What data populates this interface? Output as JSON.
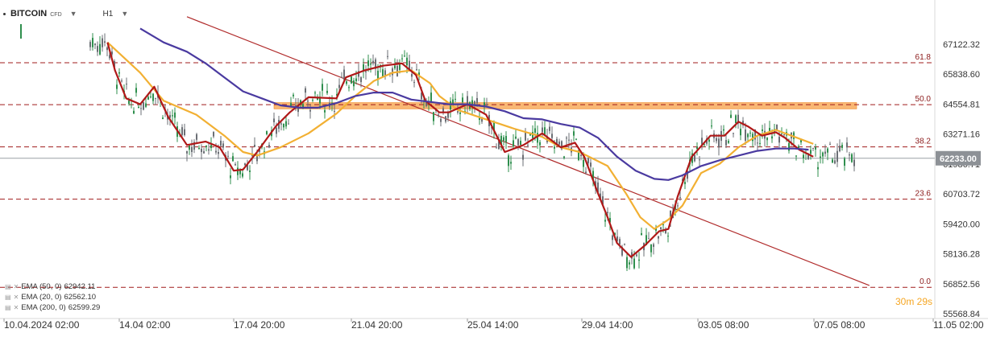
{
  "header": {
    "symbol": "BITCOIN",
    "instrument_type": "CFD",
    "timeframe": "H1"
  },
  "indicators": [
    {
      "label": "EMA (50, 0)",
      "value": "62942.11",
      "color": "#f2b033"
    },
    {
      "label": "EMA (20, 0)",
      "value": "62562.10",
      "color": "#b01818"
    },
    {
      "label": "EMA (200, 0)",
      "value": "62599.29",
      "color": "#4a3aa0"
    }
  ],
  "chart_data": {
    "type": "candlestick",
    "instrument": "BITCOIN",
    "timeframe": "H1",
    "y_ticks": [
      "67122.32",
      "65838.60",
      "64554.81",
      "63271.16",
      "61986.71",
      "60703.72",
      "59420.00",
      "58136.28",
      "56852.56",
      "55568.84"
    ],
    "y_tick_values": [
      67122.32,
      65838.6,
      64554.81,
      63271.16,
      61986.71,
      60703.72,
      59420.0,
      58136.28,
      56852.56,
      55568.84
    ],
    "ylim": [
      55568.84,
      68405.96
    ],
    "x_ticks": [
      "10.04.2024 02:00",
      "14.04 02:00",
      "17.04 20:00",
      "21.04 20:00",
      "25.04 14:00",
      "29.04 14:00",
      "03.05 08:00",
      "07.05 08:00",
      "11.05 02:00"
    ],
    "current_price": "62233.00",
    "current_price_value": 62233.0,
    "countdown": "30m 29s",
    "fib_levels": [
      {
        "label": "61.8",
        "price": 66330
      },
      {
        "label": "50.0",
        "price": 64530
      },
      {
        "label": "38.2",
        "price": 62720
      },
      {
        "label": "23.6",
        "price": 60480
      },
      {
        "label": "0.0",
        "price": 56700
      }
    ],
    "resistance_zone": {
      "from": 64350,
      "to": 64620,
      "color": "#f7a550"
    },
    "trendline": {
      "color": "#b02a2a",
      "points": [
        {
          "t": 0.2,
          "price": 68300
        },
        {
          "t": 0.93,
          "price": 56780
        }
      ]
    },
    "series": [
      {
        "name": "EMA (50, 0)",
        "color": "#f2b033",
        "points": [
          [
            0.115,
            67200
          ],
          [
            0.15,
            65900
          ],
          [
            0.175,
            64700
          ],
          [
            0.21,
            64100
          ],
          [
            0.24,
            63200
          ],
          [
            0.26,
            62500
          ],
          [
            0.275,
            62350
          ],
          [
            0.3,
            62700
          ],
          [
            0.33,
            63300
          ],
          [
            0.36,
            64150
          ],
          [
            0.38,
            64900
          ],
          [
            0.4,
            65550
          ],
          [
            0.42,
            65900
          ],
          [
            0.44,
            66000
          ],
          [
            0.46,
            65450
          ],
          [
            0.47,
            64900
          ],
          [
            0.49,
            64300
          ],
          [
            0.52,
            63900
          ],
          [
            0.55,
            63500
          ],
          [
            0.58,
            63150
          ],
          [
            0.6,
            62700
          ],
          [
            0.62,
            62500
          ],
          [
            0.65,
            61900
          ],
          [
            0.67,
            60700
          ],
          [
            0.685,
            59700
          ],
          [
            0.7,
            59200
          ],
          [
            0.715,
            59600
          ],
          [
            0.73,
            60200
          ],
          [
            0.75,
            61600
          ],
          [
            0.77,
            62000
          ],
          [
            0.79,
            62700
          ],
          [
            0.81,
            63200
          ],
          [
            0.83,
            63450
          ],
          [
            0.85,
            63150
          ],
          [
            0.87,
            62850
          ]
        ]
      },
      {
        "name": "EMA (20, 0)",
        "color": "#b01818",
        "points": [
          [
            0.115,
            67200
          ],
          [
            0.123,
            66000
          ],
          [
            0.135,
            64800
          ],
          [
            0.15,
            64550
          ],
          [
            0.165,
            65300
          ],
          [
            0.18,
            64000
          ],
          [
            0.2,
            62800
          ],
          [
            0.22,
            62950
          ],
          [
            0.235,
            62700
          ],
          [
            0.25,
            61700
          ],
          [
            0.26,
            61750
          ],
          [
            0.275,
            62500
          ],
          [
            0.295,
            63600
          ],
          [
            0.31,
            64200
          ],
          [
            0.33,
            64850
          ],
          [
            0.36,
            64800
          ],
          [
            0.37,
            65700
          ],
          [
            0.39,
            66000
          ],
          [
            0.41,
            66200
          ],
          [
            0.43,
            66300
          ],
          [
            0.445,
            65800
          ],
          [
            0.455,
            64700
          ],
          [
            0.47,
            64200
          ],
          [
            0.48,
            64200
          ],
          [
            0.5,
            64550
          ],
          [
            0.52,
            64100
          ],
          [
            0.54,
            62500
          ],
          [
            0.56,
            62800
          ],
          [
            0.58,
            63300
          ],
          [
            0.6,
            62700
          ],
          [
            0.615,
            62900
          ],
          [
            0.625,
            62300
          ],
          [
            0.64,
            60700
          ],
          [
            0.65,
            59700
          ],
          [
            0.66,
            58600
          ],
          [
            0.675,
            58000
          ],
          [
            0.69,
            58500
          ],
          [
            0.705,
            59100
          ],
          [
            0.715,
            59200
          ],
          [
            0.725,
            60600
          ],
          [
            0.74,
            62300
          ],
          [
            0.76,
            63200
          ],
          [
            0.775,
            63200
          ],
          [
            0.79,
            63800
          ],
          [
            0.8,
            63600
          ],
          [
            0.815,
            63200
          ],
          [
            0.83,
            63350
          ],
          [
            0.84,
            63100
          ],
          [
            0.855,
            62600
          ],
          [
            0.87,
            62300
          ]
        ]
      },
      {
        "name": "EMA (200, 0)",
        "color": "#4a3aa0",
        "points": [
          [
            0.15,
            67800
          ],
          [
            0.175,
            67200
          ],
          [
            0.2,
            66800
          ],
          [
            0.22,
            66300
          ],
          [
            0.24,
            65700
          ],
          [
            0.26,
            65100
          ],
          [
            0.28,
            64800
          ],
          [
            0.3,
            64500
          ],
          [
            0.32,
            64400
          ],
          [
            0.34,
            64400
          ],
          [
            0.36,
            64600
          ],
          [
            0.38,
            64900
          ],
          [
            0.4,
            65050
          ],
          [
            0.42,
            65050
          ],
          [
            0.44,
            64750
          ],
          [
            0.46,
            64650
          ],
          [
            0.48,
            64550
          ],
          [
            0.5,
            64550
          ],
          [
            0.52,
            64450
          ],
          [
            0.54,
            64250
          ],
          [
            0.56,
            63950
          ],
          [
            0.58,
            63900
          ],
          [
            0.6,
            63700
          ],
          [
            0.62,
            63550
          ],
          [
            0.64,
            63100
          ],
          [
            0.66,
            62300
          ],
          [
            0.68,
            61700
          ],
          [
            0.7,
            61350
          ],
          [
            0.715,
            61300
          ],
          [
            0.73,
            61500
          ],
          [
            0.75,
            61900
          ],
          [
            0.77,
            62150
          ],
          [
            0.79,
            62350
          ],
          [
            0.81,
            62550
          ],
          [
            0.83,
            62650
          ],
          [
            0.85,
            62650
          ],
          [
            0.865,
            62600
          ]
        ]
      }
    ]
  }
}
